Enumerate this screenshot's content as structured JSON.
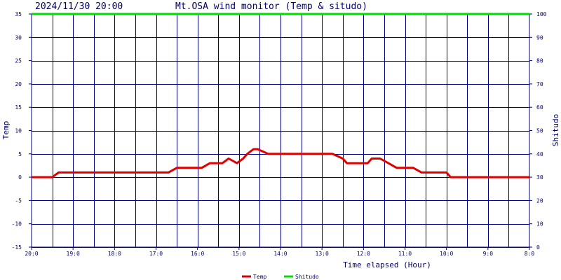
{
  "header": {
    "datetime": "2024/11/30 20:00",
    "title": "Mt.OSA wind monitor (Temp & situdo)"
  },
  "colors": {
    "grid": "#000080",
    "temp": "#dd0000",
    "shitudo": "#00dd00",
    "text": "#000066",
    "background": "#ffffff"
  },
  "chart_data": {
    "type": "line",
    "title": "Mt.OSA wind monitor (Temp & situdo)",
    "xlabel": "Time elapsed (Hour)",
    "ylabel": "Temp",
    "y2label": "Shitudo",
    "ylim": [
      -15,
      35
    ],
    "y2lim": [
      0,
      100
    ],
    "yticks": [
      -15,
      -10,
      -5,
      0,
      5,
      10,
      15,
      20,
      25,
      30,
      35
    ],
    "y2ticks": [
      0,
      10,
      20,
      30,
      40,
      50,
      60,
      70,
      80,
      90,
      100
    ],
    "xlim": [
      0,
      12
    ],
    "x_tick_labels": [
      "20:0",
      "19:0",
      "18:0",
      "17:0",
      "16:0",
      "15:0",
      "14:0",
      "13:0",
      "12:0",
      "11:0",
      "10:0",
      "9:0",
      "8:0"
    ],
    "grid": true,
    "legend_position": "bottom-center",
    "series": [
      {
        "name": "Temp",
        "axis": "left",
        "color": "#dd0000",
        "x": [
          0,
          0.5,
          0.65,
          1.0,
          2.0,
          3.0,
          3.3,
          3.5,
          4.0,
          4.1,
          4.3,
          4.6,
          4.75,
          4.95,
          5.1,
          5.2,
          5.35,
          5.45,
          5.7,
          6.0,
          7.0,
          7.25,
          7.5,
          7.6,
          8.0,
          8.1,
          8.2,
          8.4,
          8.6,
          8.8,
          9.0,
          9.2,
          9.4,
          10.0,
          10.1,
          11.0,
          12.0
        ],
        "y": [
          0,
          0,
          1,
          1,
          1,
          1,
          1,
          2,
          2,
          2,
          3,
          3,
          4,
          3,
          4,
          5,
          6,
          6,
          5,
          5,
          5,
          5,
          4,
          3,
          3,
          3,
          4,
          4,
          3,
          2,
          2,
          2,
          1,
          1,
          0,
          0,
          0
        ]
      },
      {
        "name": "Shitudo",
        "axis": "right",
        "color": "#00dd00",
        "x": [
          0,
          12
        ],
        "y": [
          100,
          100
        ]
      }
    ]
  },
  "legend": [
    {
      "name": "Temp",
      "color": "#dd0000"
    },
    {
      "name": "Shitudo",
      "color": "#00dd00"
    }
  ]
}
